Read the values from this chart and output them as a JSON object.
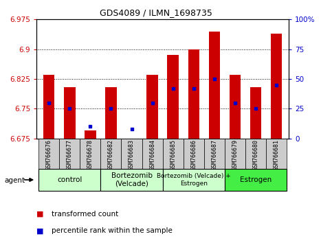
{
  "title": "GDS4089 / ILMN_1698735",
  "samples": [
    "GSM766676",
    "GSM766677",
    "GSM766678",
    "GSM766682",
    "GSM766683",
    "GSM766684",
    "GSM766685",
    "GSM766686",
    "GSM766687",
    "GSM766679",
    "GSM766680",
    "GSM766681"
  ],
  "transformed_count": [
    6.835,
    6.805,
    6.695,
    6.805,
    6.675,
    6.835,
    6.885,
    6.9,
    6.945,
    6.835,
    6.805,
    6.94
  ],
  "percentile_rank": [
    30,
    25,
    10,
    25,
    8,
    30,
    42,
    42,
    50,
    30,
    25,
    45
  ],
  "ylim_left": [
    6.675,
    6.975
  ],
  "ylim_right": [
    0,
    100
  ],
  "yticks_left": [
    6.675,
    6.75,
    6.825,
    6.9,
    6.975
  ],
  "yticks_right": [
    0,
    25,
    50,
    75,
    100
  ],
  "bar_color": "#cc0000",
  "percentile_color": "#0000cc",
  "plot_bg_color": "#ffffff",
  "tick_bg_color": "#cccccc",
  "groups": [
    {
      "label": "control",
      "start": 0,
      "end": 3,
      "color": "#ccffcc"
    },
    {
      "label": "Bortezomib\n(Velcade)",
      "start": 3,
      "end": 6,
      "color": "#ccffcc"
    },
    {
      "label": "Bortezomib (Velcade) +\nEstrogen",
      "start": 6,
      "end": 9,
      "color": "#ccffcc"
    },
    {
      "label": "Estrogen",
      "start": 9,
      "end": 12,
      "color": "#44ee44"
    }
  ],
  "bar_width": 0.55
}
